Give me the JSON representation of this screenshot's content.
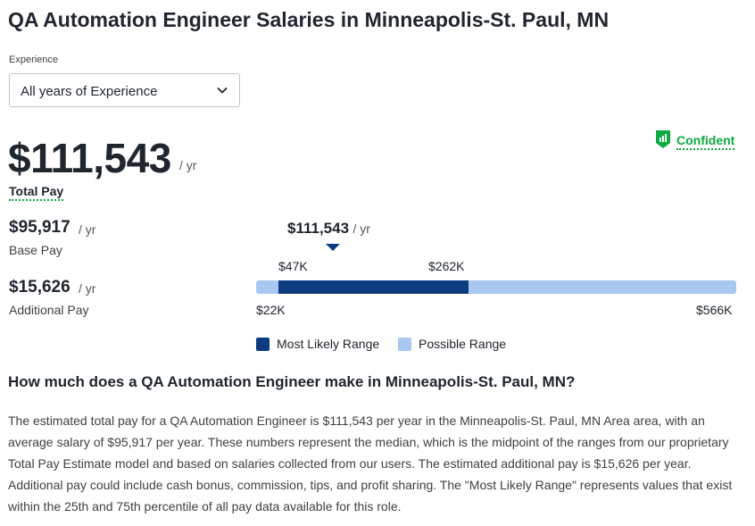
{
  "page": {
    "title": "QA Automation Engineer Salaries in Minneapolis-St. Paul, MN"
  },
  "filter": {
    "label": "Experience",
    "selected": "All years of Experience"
  },
  "pay": {
    "total": "$111,543",
    "total_unit": "/ yr",
    "total_label": "Total Pay",
    "base": "$95,917",
    "base_unit": "/ yr",
    "base_label": "Base Pay",
    "additional": "$15,626",
    "additional_unit": "/ yr",
    "additional_label": "Additional Pay"
  },
  "confidence": {
    "label": "Confident",
    "color": "#0caa41"
  },
  "range_chart": {
    "median_label": "$111,543",
    "median_unit": "/ yr",
    "likely_low_label": "$47K",
    "likely_high_label": "$262K",
    "min_label": "$22K",
    "max_label": "$566K",
    "legend_likely": "Most Likely Range",
    "legend_possible": "Possible Range",
    "likely_color": "#0d3b80",
    "possible_color": "#a8c8f2"
  },
  "section": {
    "heading": "How much does a QA Automation Engineer make in Minneapolis-St. Paul, MN?",
    "body": "The estimated total pay for a QA Automation Engineer is $111,543 per year in the Minneapolis-St. Paul, MN Area area, with an average salary of $95,917 per year. These numbers represent the median, which is the midpoint of the ranges from our proprietary Total Pay Estimate model and based on salaries collected from our users. The estimated additional pay is $15,626 per year. Additional pay could include cash bonus, commission, tips, and profit sharing. The \"Most Likely Range\" represents values that exist within the 25th and 75th percentile of all pay data available for this role."
  }
}
